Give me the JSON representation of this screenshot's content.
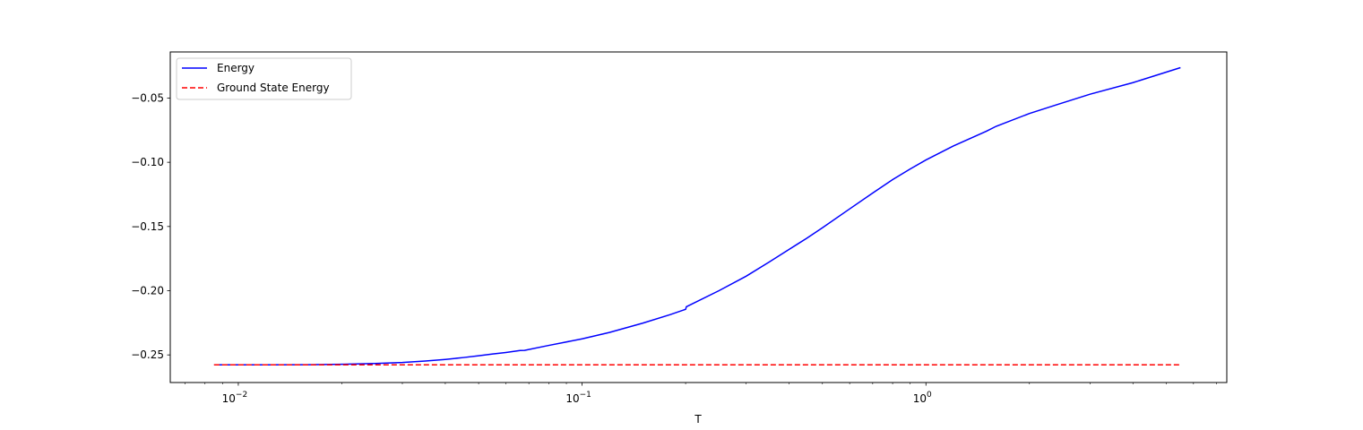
{
  "chart_data": {
    "type": "line",
    "title": "",
    "xlabel": "T",
    "ylabel": "",
    "xscale": "log",
    "xlim": [
      0.00634,
      7.5
    ],
    "ylim": [
      -0.2715,
      -0.0141
    ],
    "x_ticks": [
      {
        "value": 0.01,
        "label": "10",
        "exp": "−2"
      },
      {
        "value": 0.1,
        "label": "10",
        "exp": "−1"
      },
      {
        "value": 1,
        "label": "10",
        "exp": "0"
      }
    ],
    "y_ticks": [
      {
        "value": -0.25,
        "label": "−0.25"
      },
      {
        "value": -0.2,
        "label": "−0.20"
      },
      {
        "value": -0.15,
        "label": "−0.15"
      },
      {
        "value": -0.1,
        "label": "−0.10"
      },
      {
        "value": -0.05,
        "label": "−0.05"
      }
    ],
    "legend_position": "top-left",
    "grid": false,
    "series": [
      {
        "name": "Energy",
        "color": "#0000ff",
        "style": "solid",
        "x": [
          0.0085,
          0.012,
          0.016,
          0.02,
          0.025,
          0.03,
          0.035,
          0.04,
          0.045,
          0.05,
          0.055,
          0.06,
          0.066,
          0.068,
          0.08,
          0.1,
          0.12,
          0.15,
          0.18,
          0.2,
          0.201,
          0.25,
          0.3,
          0.35,
          0.4,
          0.45,
          0.5,
          0.6,
          0.7,
          0.8,
          0.9,
          1.0,
          1.2,
          1.5,
          1.6,
          2.0,
          2.4,
          3.0,
          4.0,
          5.5
        ],
        "y": [
          -0.2577,
          -0.2577,
          -0.2576,
          -0.2573,
          -0.2567,
          -0.2559,
          -0.2548,
          -0.2535,
          -0.2521,
          -0.2507,
          -0.2493,
          -0.2481,
          -0.2466,
          -0.2465,
          -0.2426,
          -0.2375,
          -0.2325,
          -0.2253,
          -0.2187,
          -0.2145,
          -0.2125,
          -0.2,
          -0.1887,
          -0.1777,
          -0.1678,
          -0.1592,
          -0.151,
          -0.1363,
          -0.124,
          -0.1135,
          -0.1052,
          -0.0982,
          -0.0874,
          -0.0758,
          -0.072,
          -0.062,
          -0.0552,
          -0.047,
          -0.038,
          -0.0263
        ]
      },
      {
        "name": "Ground State Energy",
        "color": "#ff0000",
        "style": "dashed",
        "x": [
          0.0085,
          5.5
        ],
        "y": [
          -0.2577,
          -0.2577
        ]
      }
    ]
  }
}
